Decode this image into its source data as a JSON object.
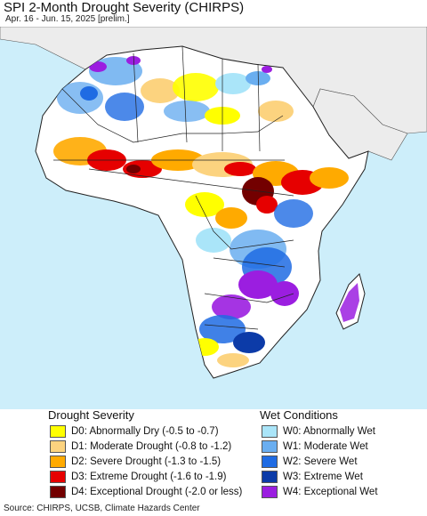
{
  "header": {
    "title": "SPI 2-Month Drought Severity (CHIRPS)",
    "subtitle": "Apr. 16 - Jun. 15, 2025 [prelim.]"
  },
  "legend": {
    "drought": {
      "title": "Drought Severity",
      "items": [
        {
          "label": "D0: Abnormally Dry (-0.5 to -0.7)",
          "color": "#ffff00"
        },
        {
          "label": "D1: Moderate Drought (-0.8 to -1.2)",
          "color": "#fcd37f"
        },
        {
          "label": "D2: Severe Drought (-1.3 to -1.5)",
          "color": "#ffaa00"
        },
        {
          "label": "D3: Extreme Drought (-1.6 to -1.9)",
          "color": "#e60000"
        },
        {
          "label": "D4: Exceptional Drought (-2.0 or less)",
          "color": "#730000"
        }
      ]
    },
    "wet": {
      "title": "Wet Conditions",
      "items": [
        {
          "label": "W0: Abnormally Wet",
          "color": "#aae5f9"
        },
        {
          "label": "W1: Moderate Wet",
          "color": "#6aaef0"
        },
        {
          "label": "W2: Severe Wet",
          "color": "#1f6be3"
        },
        {
          "label": "W3: Extreme Wet",
          "color": "#0c3ba8"
        },
        {
          "label": "W4: Exceptional Wet",
          "color": "#9b1ee0"
        }
      ]
    }
  },
  "map": {
    "ocean_color": "#cdeefa",
    "land_color": "#ffffff",
    "non_analysis_color": "#ececec",
    "border_color": "#222222"
  },
  "footer": {
    "source": "Source: CHIRPS, UCSB, Climate Hazards Center"
  }
}
